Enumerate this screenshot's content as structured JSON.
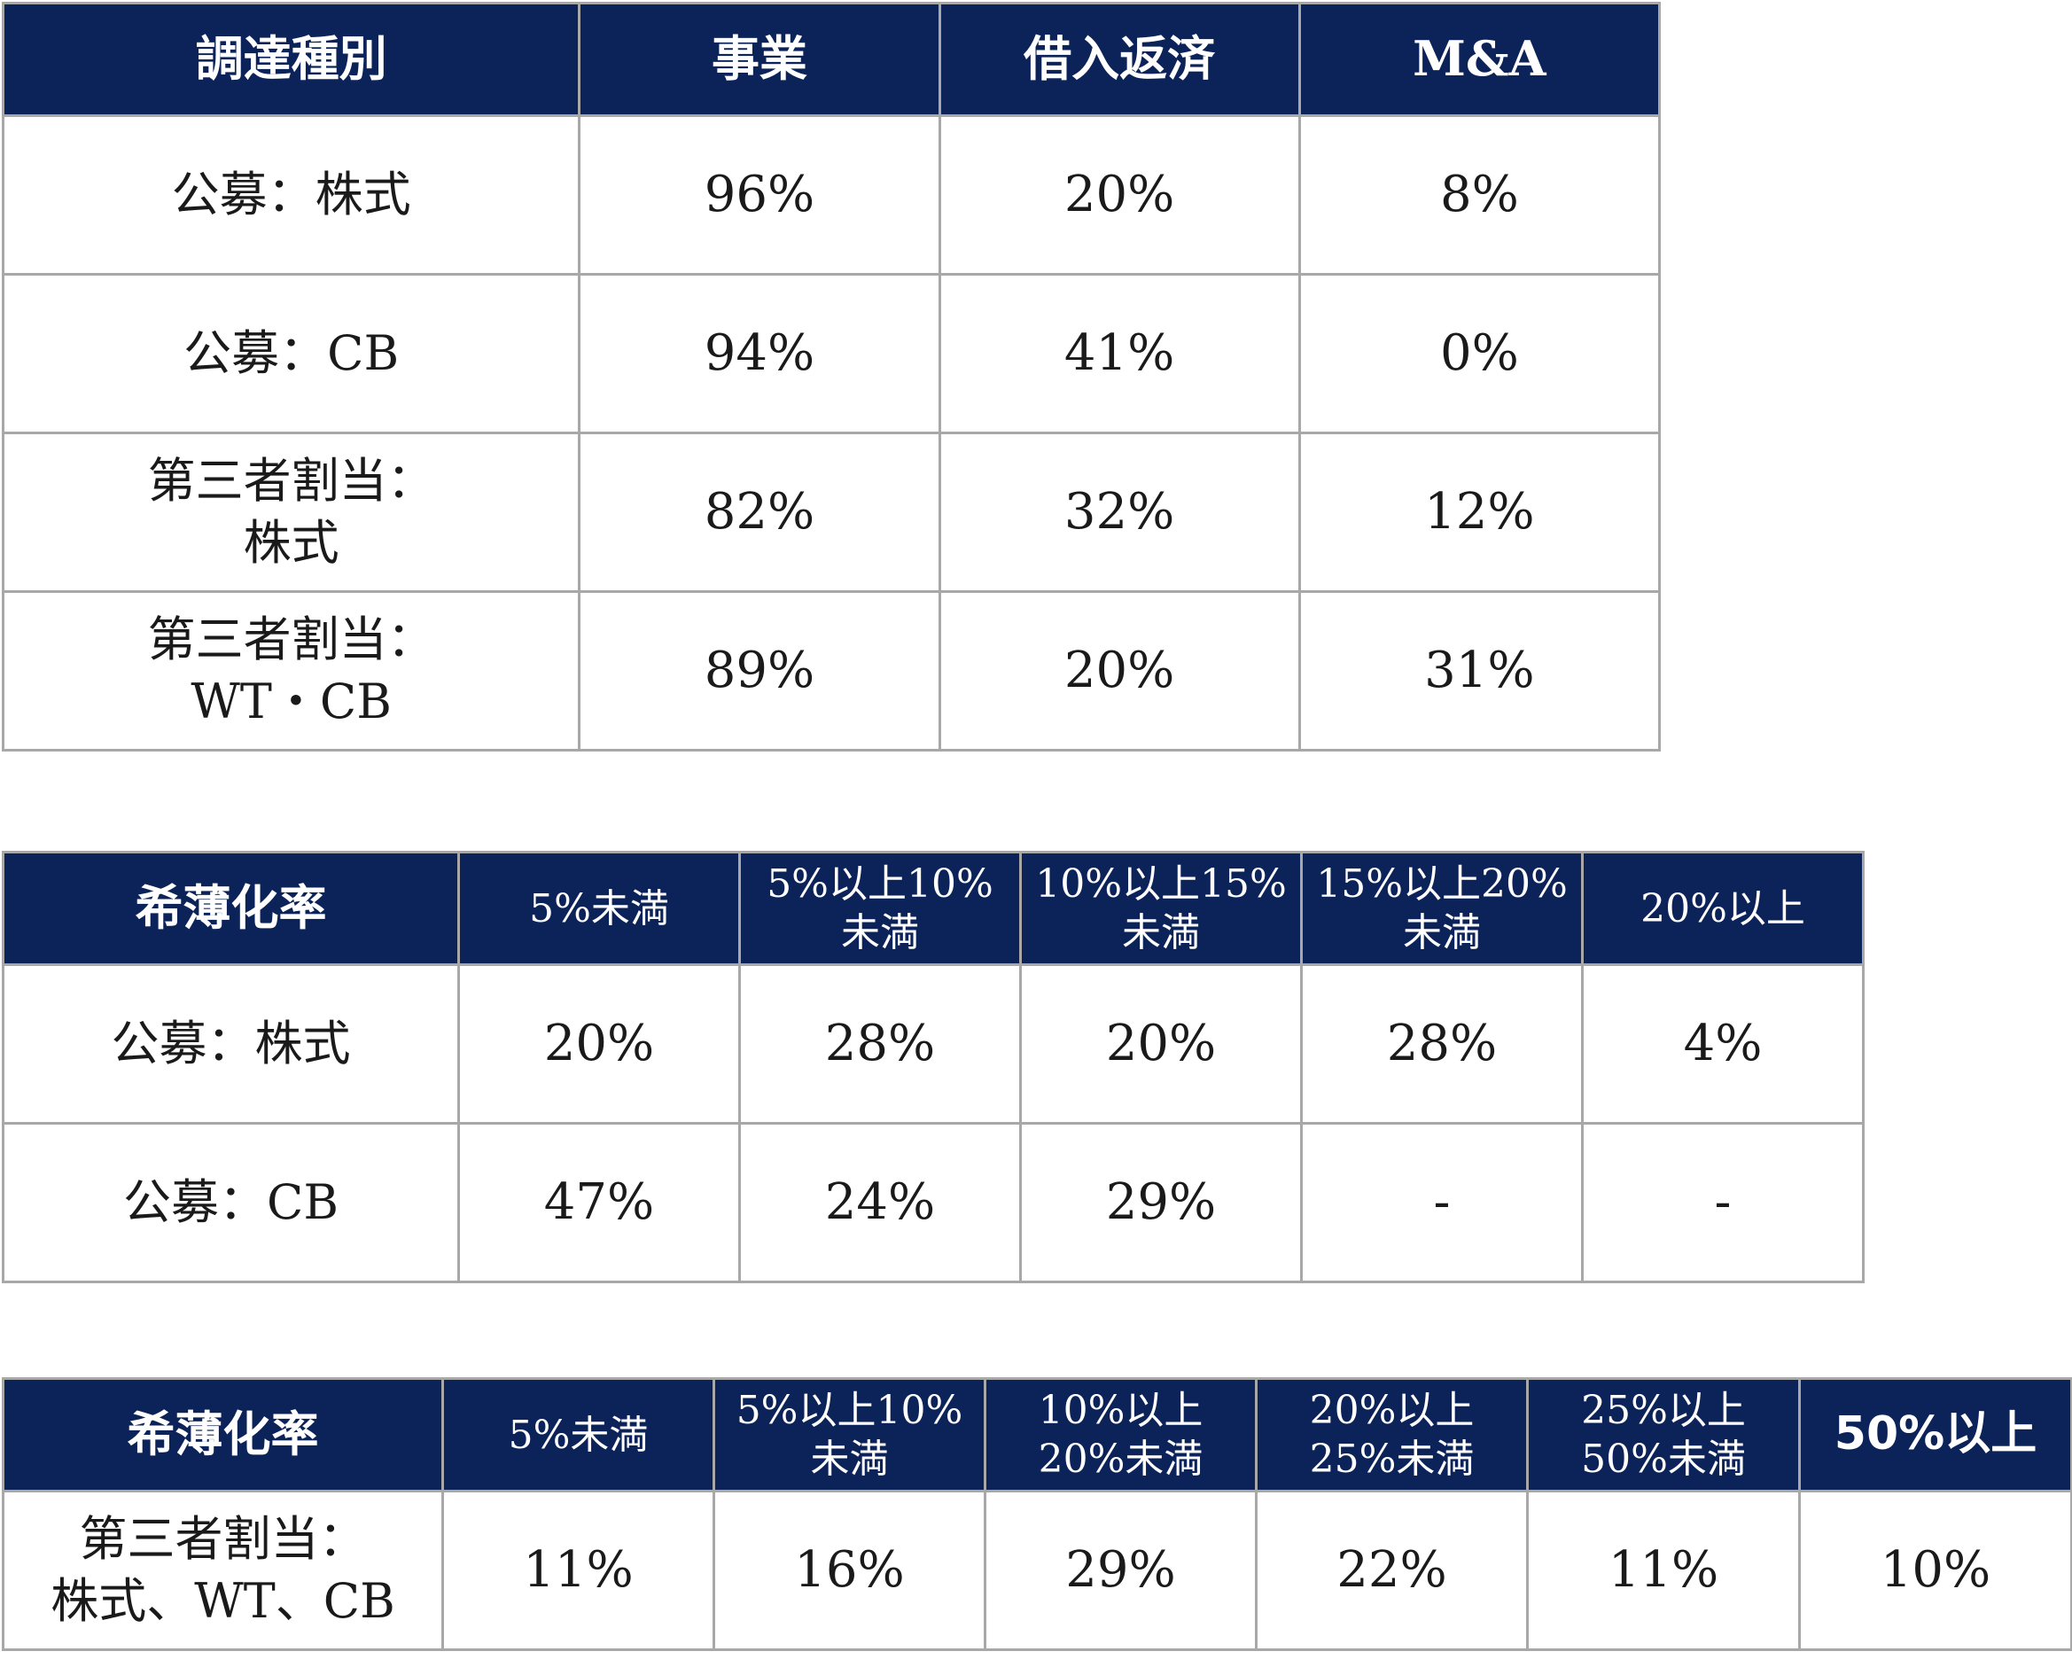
{
  "table_use": {
    "headers": [
      "調達種別",
      "事業",
      "借入返済",
      "M&A"
    ],
    "rows": [
      {
        "label": "公募：株式",
        "values": [
          "96%",
          "20%",
          "8%"
        ]
      },
      {
        "label": "公募：CB",
        "values": [
          "94%",
          "41%",
          "0%"
        ]
      },
      {
        "label": "第三者割当：\n株式",
        "values": [
          "82%",
          "32%",
          "12%"
        ]
      },
      {
        "label": "第三者割当：\nWT・CB",
        "values": [
          "89%",
          "20%",
          "31%"
        ]
      }
    ]
  },
  "table_dilution_public": {
    "headers": [
      "希薄化率",
      "5%未満",
      "5%以上10%\n未満",
      "10%以上15%\n未満",
      "15%以上20%\n未満",
      "20%以上"
    ],
    "rows": [
      {
        "label": "公募：株式",
        "values": [
          "20%",
          "28%",
          "20%",
          "28%",
          "4%"
        ]
      },
      {
        "label": "公募：CB",
        "values": [
          "47%",
          "24%",
          "29%",
          "-",
          "-"
        ]
      }
    ]
  },
  "table_dilution_private": {
    "headers": [
      "希薄化率",
      "5%未満",
      "5%以上10%\n未満",
      "10%以上\n20%未満",
      "20%以上\n25%未満",
      "25%以上\n50%未満",
      "50%以上"
    ],
    "rows": [
      {
        "label": "第三者割当：\n株式、WT、CB",
        "values": [
          "11%",
          "16%",
          "29%",
          "22%",
          "11%",
          "10%"
        ]
      }
    ]
  },
  "colors": {
    "header_bg": "#0c2359",
    "header_text": "#ffffff",
    "border": "#a8a8a8"
  }
}
